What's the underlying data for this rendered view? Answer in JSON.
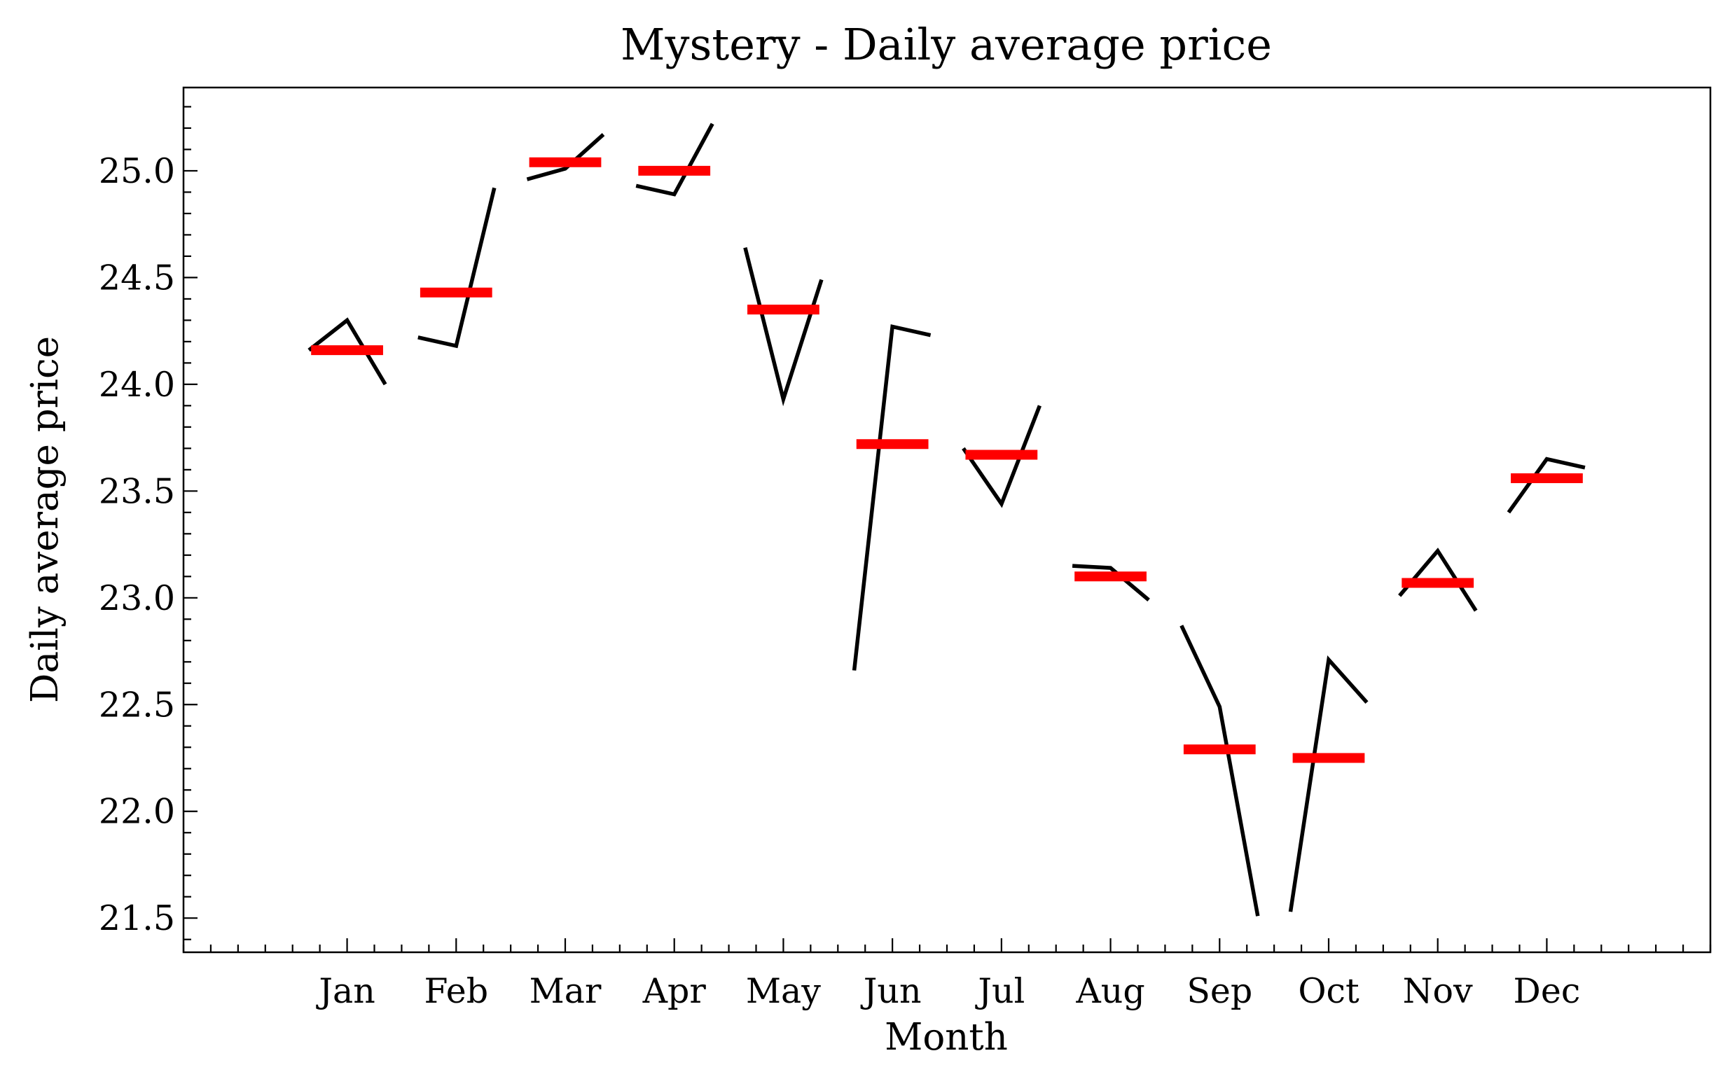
{
  "chart_data": {
    "type": "line",
    "title": "Mystery - Daily average price",
    "xlabel": "Month",
    "ylabel": "Daily average price",
    "categories": [
      "Jan",
      "Feb",
      "Mar",
      "Apr",
      "May",
      "Jun",
      "Jul",
      "Aug",
      "Sep",
      "Oct",
      "Nov",
      "Dec"
    ],
    "ylim": [
      21.34,
      25.39
    ],
    "xlim": [
      -1.5,
      12.5
    ],
    "yticks": [
      21.5,
      22.0,
      22.5,
      23.0,
      23.5,
      24.0,
      24.5,
      25.0
    ],
    "ytick_labels": [
      "21.5",
      "22.0",
      "22.5",
      "23.0",
      "23.5",
      "24.0",
      "24.5",
      "25.0"
    ],
    "grid": false,
    "series": [
      {
        "kind": "month-profile",
        "color": "#000000",
        "values": [
          [
            24.16,
            24.3,
            24.0
          ],
          [
            24.22,
            24.18,
            24.92
          ],
          [
            24.96,
            25.01,
            25.17
          ],
          [
            24.93,
            24.89,
            25.22
          ],
          [
            24.64,
            23.93,
            24.49
          ],
          [
            22.66,
            24.27,
            24.23
          ],
          [
            23.7,
            23.44,
            23.9
          ],
          [
            23.15,
            23.14,
            22.99
          ],
          [
            22.87,
            22.49,
            21.51
          ],
          [
            21.53,
            22.71,
            22.51
          ],
          [
            23.01,
            23.22,
            22.94
          ],
          [
            23.4,
            23.65,
            23.61
          ]
        ]
      },
      {
        "kind": "month-mean",
        "color": "#ff0000",
        "values": [
          24.16,
          24.43,
          25.04,
          25.0,
          24.35,
          23.72,
          23.67,
          23.1,
          22.29,
          22.25,
          23.07,
          23.56
        ]
      }
    ]
  }
}
